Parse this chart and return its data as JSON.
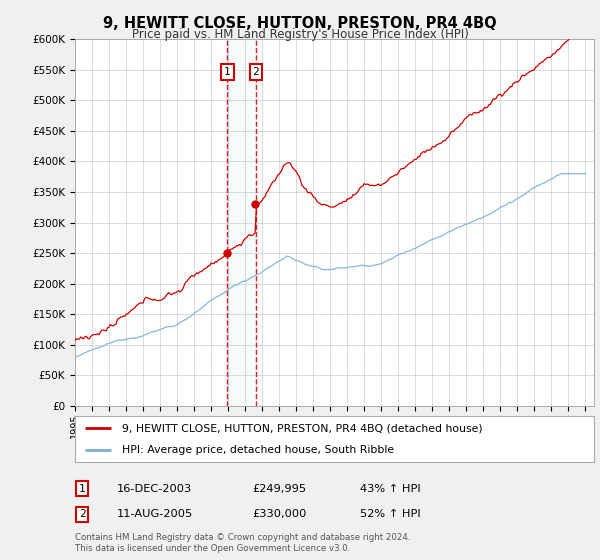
{
  "title": "9, HEWITT CLOSE, HUTTON, PRESTON, PR4 4BQ",
  "subtitle": "Price paid vs. HM Land Registry's House Price Index (HPI)",
  "sale1_t": 2003.958,
  "sale1_price": 249995,
  "sale2_t": 2005.625,
  "sale2_price": 330000,
  "ylim": [
    0,
    600000
  ],
  "yticks": [
    0,
    50000,
    100000,
    150000,
    200000,
    250000,
    300000,
    350000,
    400000,
    450000,
    500000,
    550000,
    600000
  ],
  "red_color": "#cc0000",
  "blue_color": "#7bafd4",
  "legend_label_red": "9, HEWITT CLOSE, HUTTON, PRESTON, PR4 4BQ (detached house)",
  "legend_label_blue": "HPI: Average price, detached house, South Ribble",
  "table_row1": [
    "1",
    "16-DEC-2003",
    "£249,995",
    "43% ↑ HPI"
  ],
  "table_row2": [
    "2",
    "11-AUG-2005",
    "£330,000",
    "52% ↑ HPI"
  ],
  "footnote1": "Contains HM Land Registry data © Crown copyright and database right 2024.",
  "footnote2": "This data is licensed under the Open Government Licence v3.0.",
  "background_color": "#f0f0f0",
  "plot_bg_color": "#ffffff"
}
